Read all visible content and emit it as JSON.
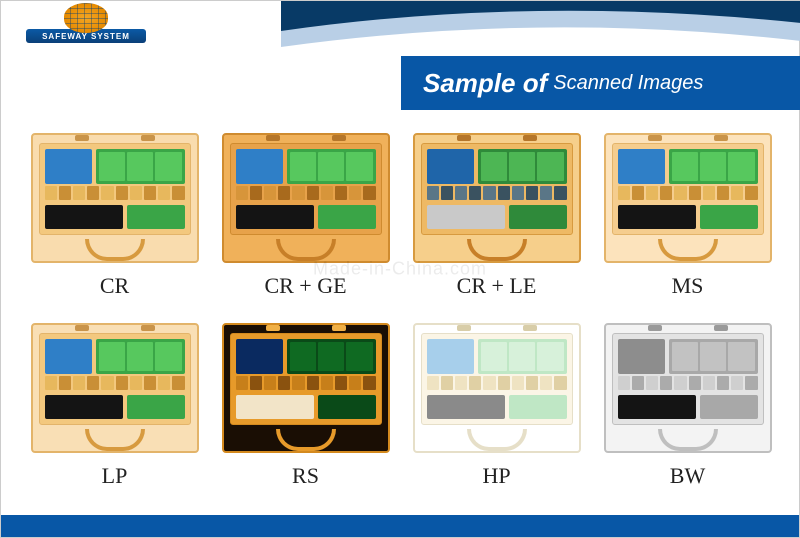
{
  "brand": {
    "name": "SAFEWAY SYSTEM"
  },
  "title": {
    "lead": "Sample of",
    "rest": "Scanned Images"
  },
  "watermark": "Made-in-China.com",
  "colors": {
    "brand_blue": "#0857a6",
    "swoosh_dark": "#083a66",
    "swoosh_light": "#b9cfe6"
  },
  "samples": [
    {
      "id": "cr",
      "label": "CR",
      "case_bg": "#f9dcae",
      "case_edge": "#e3b46a",
      "inner_bg": "#f3c87e",
      "latch": "#c9944a",
      "handle": "#d79a3f",
      "blkA": "#2f7fc7",
      "blkB_outer": "#3aa547",
      "blkB_inner": "#57c85e",
      "row2": "#e7b85d",
      "row2_alt": "#c98f36",
      "blkC": "#141414",
      "blkD": "#3aa547"
    },
    {
      "id": "cr_ge",
      "label": "CR + GE",
      "case_bg": "#f0b15a",
      "case_edge": "#cf8b2f",
      "inner_bg": "#e7a24a",
      "latch": "#b5762a",
      "handle": "#c77f28",
      "blkA": "#2f7fc7",
      "blkB_outer": "#3aa547",
      "blkB_inner": "#57c85e",
      "row2": "#d7953a",
      "row2_alt": "#a86a1d",
      "blkC": "#141414",
      "blkD": "#3aa547"
    },
    {
      "id": "cr_le",
      "label": "CR + LE",
      "case_bg": "#f6cf8b",
      "case_edge": "#d79a3f",
      "inner_bg": "#eeb964",
      "latch": "#b5762a",
      "handle": "#c77f28",
      "blkA": "#1f65a9",
      "blkB_outer": "#2f8a3a",
      "blkB_inner": "#4db654",
      "row2": "#5a7687",
      "row2_alt": "#3a5260",
      "blkC": "#c9c9c9",
      "blkD": "#2f8a3a"
    },
    {
      "id": "ms",
      "label": "MS",
      "case_bg": "#fce3bc",
      "case_edge": "#e3b46a",
      "inner_bg": "#f5cd8e",
      "latch": "#c9944a",
      "handle": "#d79a3f",
      "blkA": "#2f7fc7",
      "blkB_outer": "#3aa547",
      "blkB_inner": "#57c85e",
      "row2": "#e7b85d",
      "row2_alt": "#c98f36",
      "blkC": "#141414",
      "blkD": "#3aa547"
    },
    {
      "id": "lp",
      "label": "LP",
      "case_bg": "#f9dfb5",
      "case_edge": "#e3b46a",
      "inner_bg": "#f3c87e",
      "latch": "#c9944a",
      "handle": "#d79a3f",
      "blkA": "#2f7fc7",
      "blkB_outer": "#3aa547",
      "blkB_inner": "#57c85e",
      "row2": "#e7b85d",
      "row2_alt": "#c98f36",
      "blkC": "#141414",
      "blkD": "#3aa547"
    },
    {
      "id": "rs",
      "label": "RS",
      "case_bg": "#1a0e04",
      "case_edge": "#d48a1f",
      "inner_bg": "#e79a2a",
      "latch": "#f0b046",
      "handle": "#e79a2a",
      "blkA": "#0a2a60",
      "blkB_outer": "#0a4a18",
      "blkB_inner": "#0f6a22",
      "row2": "#c77f1a",
      "row2_alt": "#8a520f",
      "blkC": "#f2e4c8",
      "blkD": "#0a4a18"
    },
    {
      "id": "hp",
      "label": "HP",
      "case_bg": "#ffffff",
      "case_edge": "#e6dfc8",
      "inner_bg": "#fbf5e6",
      "latch": "#d8cda8",
      "handle": "#e6dfc8",
      "blkA": "#a7cfeb",
      "blkB_outer": "#bfe7c5",
      "blkB_inner": "#d7f1da",
      "row2": "#efe3c2",
      "row2_alt": "#e0d0a4",
      "blkC": "#8a8a8a",
      "blkD": "#bfe7c5"
    },
    {
      "id": "bw",
      "label": "BW",
      "case_bg": "#f3f3f3",
      "case_edge": "#bfbfbf",
      "inner_bg": "#e3e3e3",
      "latch": "#9a9a9a",
      "handle": "#bfbfbf",
      "blkA": "#8d8d8d",
      "blkB_outer": "#a8a8a8",
      "blkB_inner": "#c2c2c2",
      "row2": "#cfcfcf",
      "row2_alt": "#ababab",
      "blkC": "#141414",
      "blkD": "#a8a8a8"
    }
  ]
}
